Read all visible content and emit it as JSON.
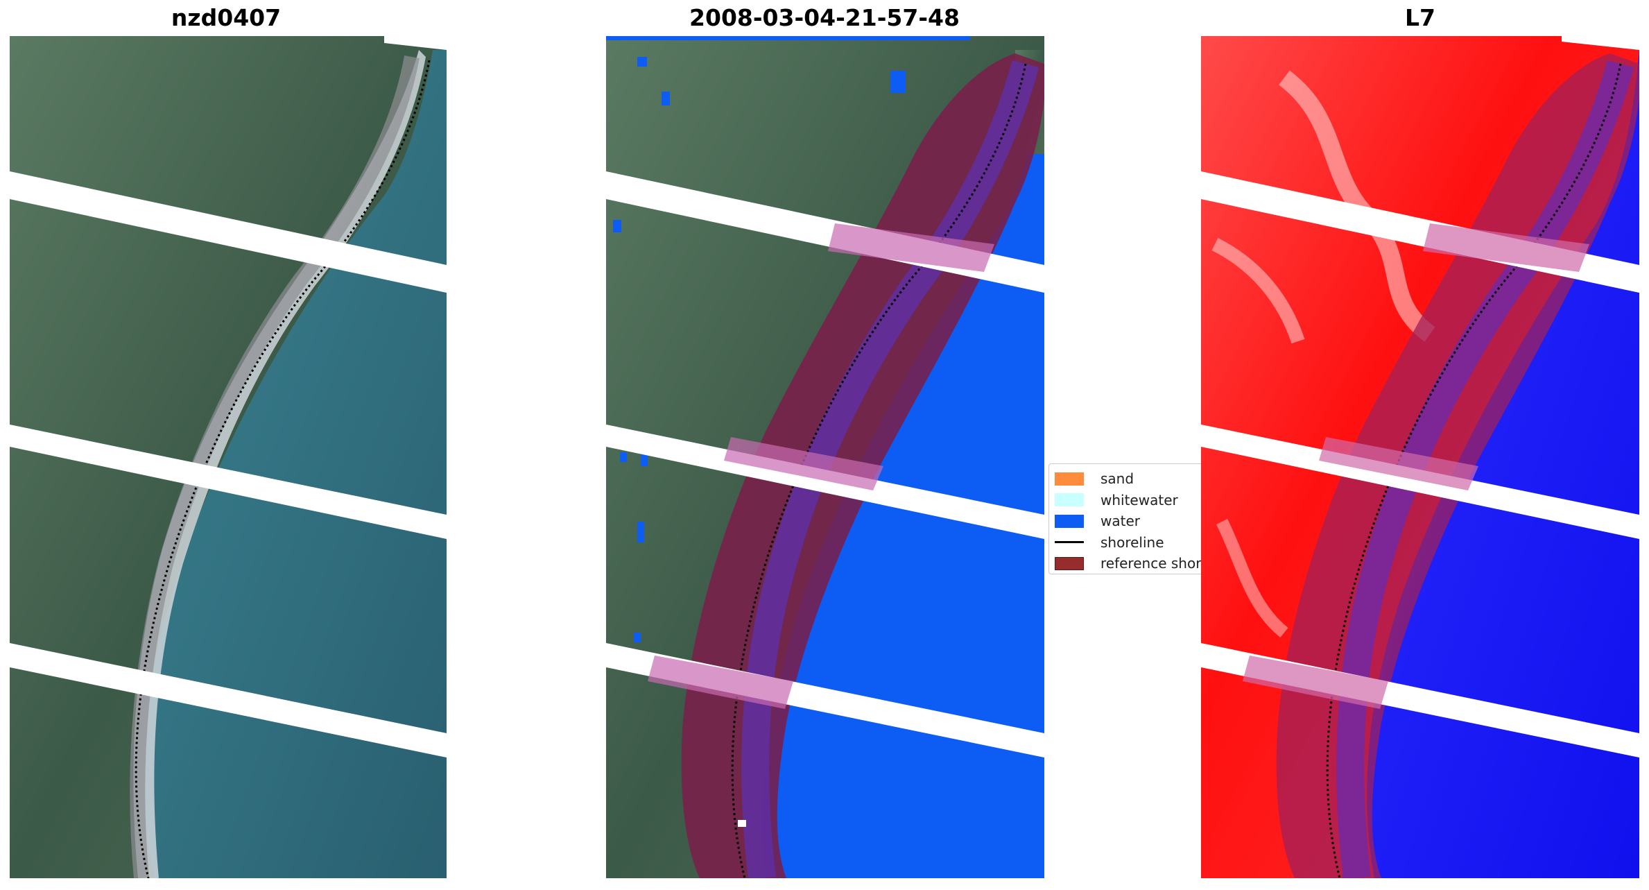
{
  "panels": [
    {
      "title": "nzd0407"
    },
    {
      "title": "2008-03-04-21-57-48"
    },
    {
      "title": "L7"
    }
  ],
  "legend": {
    "items": [
      {
        "label": "sand",
        "color": "#ff8c3c"
      },
      {
        "label": "whitewater",
        "color": "#c8ffff"
      },
      {
        "label": "water",
        "color": "#0d5cf4"
      },
      {
        "label": "shoreline",
        "color": "#000000"
      },
      {
        "label": "reference shor",
        "color": "#962c2c"
      }
    ]
  },
  "colors": {
    "land_dark": "#3d5a45",
    "land_mid": "#5f7a5f",
    "sea": "#2e6b78",
    "surf": "#cfd8df",
    "water_class": "#0d5cf4",
    "buffer": "#7a1f4a",
    "buffer_over_water": "#5e2fa6",
    "ndwi_land": "#ff2020",
    "ndwi_water": "#1a1aff"
  }
}
